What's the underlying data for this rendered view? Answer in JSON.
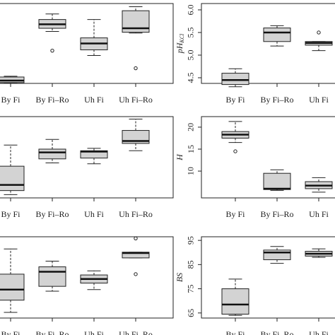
{
  "chart_data": [
    {
      "type": "box",
      "categories": [
        "By Fi",
        "By Fi–Ro",
        "Uh Fi",
        "Uh Fi–Ro"
      ],
      "ylim": [
        0,
        100
      ],
      "boxes": [
        {
          "min": 0.5,
          "q1": 1,
          "median": 3.5,
          "q3": 8,
          "max": 9,
          "outliers": []
        },
        {
          "min": 65,
          "q1": 69,
          "median": 74,
          "q3": 80,
          "max": 87,
          "outliers": [
            41
          ]
        },
        {
          "min": 35,
          "q1": 42,
          "median": 50,
          "q3": 57,
          "max": 80,
          "outliers": []
        },
        {
          "min": 63,
          "q1": 64,
          "median": 69,
          "q3": 91,
          "max": 96,
          "outliers": [
            19
          ]
        }
      ]
    },
    {
      "type": "box",
      "categories": [
        "By Fi",
        "By Fi–Ro",
        "Uh Fi"
      ],
      "ylabel": "pH",
      "ylabel_sub": "KCl",
      "ylim": [
        4.375,
        6.14
      ],
      "yticks": [
        4.5,
        {
          "value": 5.0,
          "label": "5.0"
        },
        5.5,
        {
          "value": 6.0,
          "label": "6.0"
        }
      ],
      "boxes": [
        {
          "min": 4.3,
          "q1": 4.35,
          "median": 4.45,
          "q3": 4.6,
          "max": 4.7,
          "outliers": []
        },
        {
          "min": 5.2,
          "q1": 5.3,
          "median": 5.5,
          "q3": 5.6,
          "max": 5.65,
          "outliers": []
        },
        {
          "min": 5.1,
          "q1": 5.22,
          "median": 5.27,
          "q3": 5.3,
          "max": 5.3,
          "outliers": [
            5.5
          ]
        }
      ]
    },
    {
      "type": "box",
      "categories": [
        "By Fi",
        "By Fi–Ro",
        "Uh Fi",
        "Uh Fi–Ro"
      ],
      "ylim": [
        0,
        100
      ],
      "boxes": [
        {
          "min": 4,
          "q1": 9,
          "median": 16,
          "q3": 39,
          "max": 65,
          "outliers": []
        },
        {
          "min": 43,
          "q1": 48,
          "median": 56,
          "q3": 60,
          "max": 72,
          "outliers": []
        },
        {
          "min": 42,
          "q1": 49,
          "median": 57,
          "q3": 58,
          "max": 61,
          "outliers": []
        },
        {
          "min": 58,
          "q1": 67,
          "median": 70,
          "q3": 83,
          "max": 97,
          "outliers": []
        }
      ]
    },
    {
      "type": "box",
      "categories": [
        "By Fi",
        "By Fi–Ro",
        "Uh Fi"
      ],
      "ylabel": "H",
      "ylim": [
        3.9,
        22.4
      ],
      "yticks": [
        10,
        15,
        20
      ],
      "boxes": [
        {
          "min": 16.5,
          "q1": 17.5,
          "median": 18.3,
          "q3": 19,
          "max": 21.3,
          "outliers": [
            14.5
          ]
        },
        {
          "min": 5.6,
          "q1": 5.8,
          "median": 6,
          "q3": 9.5,
          "max": 10.3,
          "outliers": []
        },
        {
          "min": 5.2,
          "q1": 6,
          "median": 6.7,
          "q3": 7.6,
          "max": 8.5,
          "outliers": []
        }
      ]
    },
    {
      "type": "box",
      "categories": [
        "By Fi",
        "By Fi–Ro",
        "Uh Fi",
        "Uh Fi–Ro"
      ],
      "ylim": [
        0,
        100
      ],
      "boxes": [
        {
          "min": 7,
          "q1": 22,
          "median": 35,
          "q3": 54,
          "max": 85,
          "outliers": []
        },
        {
          "min": 33,
          "q1": 39,
          "median": 57,
          "q3": 63,
          "max": 70,
          "outliers": []
        },
        {
          "min": 35,
          "q1": 43,
          "median": 48,
          "q3": 53,
          "max": 58,
          "outliers": []
        },
        {
          "min": 74,
          "q1": 74,
          "median": 80,
          "q3": 81,
          "max": 81,
          "outliers": [
            98,
            54
          ]
        }
      ]
    },
    {
      "type": "box",
      "categories": [
        "By Fi",
        "By Fi–Ro",
        "Uh Fi"
      ],
      "ylabel": "BS",
      "ylim": [
        62.9,
        96.5
      ],
      "yticks": [
        65,
        75,
        85,
        95
      ],
      "boxes": [
        {
          "min": 64,
          "q1": 64.5,
          "median": 68.5,
          "q3": 75,
          "max": 79,
          "outliers": []
        },
        {
          "min": 85.5,
          "q1": 87,
          "median": 90,
          "q3": 91,
          "max": 92.5,
          "outliers": []
        },
        {
          "min": 88,
          "q1": 88.5,
          "median": 89.5,
          "q3": 90.5,
          "max": 91.5,
          "outliers": []
        }
      ]
    }
  ]
}
